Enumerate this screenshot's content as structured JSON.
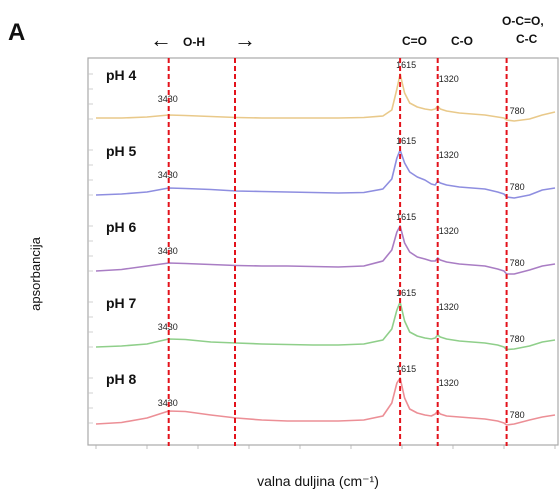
{
  "chart_data": {
    "type": "line",
    "panel_label": "A",
    "xlabel": "valna duljina (cm⁻¹)",
    "ylabel": "apsorbancija",
    "header": {
      "oh_label": "O-H",
      "oh_arrow_left": "←",
      "oh_arrow_right": "→",
      "co_double": "C=O",
      "co_single": "C-O",
      "oco_line1": "O-C=O,",
      "oco_line2": "C-C"
    },
    "x_reversed": true,
    "xlim": [
      4000,
      400
    ],
    "x": [
      4000,
      3800,
      3600,
      3430,
      3300,
      3100,
      2900,
      2700,
      2500,
      2300,
      2100,
      1900,
      1750,
      1680,
      1640,
      1615,
      1580,
      1540,
      1480,
      1420,
      1370,
      1340,
      1320,
      1300,
      1250,
      1150,
      1050,
      950,
      850,
      800,
      780,
      720,
      600,
      500,
      400
    ],
    "reference_lines": [
      3430,
      2910,
      1615,
      1320,
      780
    ],
    "series": [
      {
        "name": "pH 4",
        "color": "#e9c98a",
        "values": [
          0.12,
          0.12,
          0.14,
          0.18,
          0.17,
          0.15,
          0.13,
          0.12,
          0.12,
          0.12,
          0.12,
          0.13,
          0.16,
          0.28,
          0.7,
          1.0,
          0.62,
          0.42,
          0.34,
          0.3,
          0.28,
          0.3,
          0.36,
          0.3,
          0.26,
          0.22,
          0.2,
          0.18,
          0.14,
          0.12,
          0.08,
          0.06,
          0.1,
          0.18,
          0.24
        ]
      },
      {
        "name": "pH 5",
        "color": "#8e8ee0",
        "values": [
          0.1,
          0.12,
          0.16,
          0.24,
          0.23,
          0.21,
          0.18,
          0.17,
          0.16,
          0.15,
          0.14,
          0.15,
          0.22,
          0.42,
          0.84,
          1.0,
          0.74,
          0.56,
          0.46,
          0.4,
          0.32,
          0.3,
          0.38,
          0.34,
          0.3,
          0.26,
          0.24,
          0.22,
          0.16,
          0.12,
          0.06,
          0.04,
          0.1,
          0.2,
          0.24
        ]
      },
      {
        "name": "pH 6",
        "color": "#a97dc4",
        "values": [
          0.1,
          0.13,
          0.2,
          0.26,
          0.25,
          0.23,
          0.21,
          0.2,
          0.2,
          0.19,
          0.18,
          0.2,
          0.3,
          0.52,
          0.88,
          1.0,
          0.66,
          0.48,
          0.38,
          0.34,
          0.3,
          0.3,
          0.36,
          0.32,
          0.28,
          0.24,
          0.22,
          0.2,
          0.14,
          0.1,
          0.04,
          0.04,
          0.12,
          0.2,
          0.24
        ]
      },
      {
        "name": "pH 7",
        "color": "#8fcf8a",
        "values": [
          0.1,
          0.12,
          0.16,
          0.26,
          0.25,
          0.2,
          0.18,
          0.16,
          0.15,
          0.14,
          0.14,
          0.16,
          0.24,
          0.46,
          0.84,
          1.0,
          0.62,
          0.4,
          0.32,
          0.28,
          0.26,
          0.28,
          0.34,
          0.3,
          0.26,
          0.22,
          0.2,
          0.18,
          0.14,
          0.1,
          0.05,
          0.06,
          0.12,
          0.2,
          0.24
        ]
      },
      {
        "name": "pH 8",
        "color": "#ec8f96",
        "values": [
          0.08,
          0.11,
          0.2,
          0.34,
          0.33,
          0.26,
          0.2,
          0.16,
          0.14,
          0.14,
          0.14,
          0.16,
          0.24,
          0.5,
          0.9,
          1.0,
          0.6,
          0.38,
          0.3,
          0.26,
          0.24,
          0.28,
          0.34,
          0.28,
          0.24,
          0.22,
          0.2,
          0.18,
          0.14,
          0.1,
          0.06,
          0.08,
          0.16,
          0.22,
          0.26
        ]
      }
    ],
    "peak_labels": [
      {
        "x": 3430,
        "text": "3430"
      },
      {
        "x": 1615,
        "text": "1615"
      },
      {
        "x": 1320,
        "text": "1320"
      },
      {
        "x": 780,
        "text": "780"
      }
    ],
    "grid": false,
    "legend": "none"
  }
}
